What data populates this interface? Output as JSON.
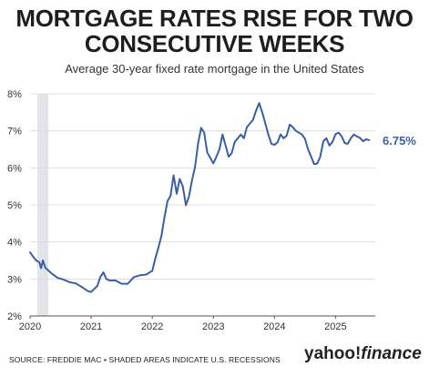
{
  "header": {
    "title": "MORTGAGE RATES RISE FOR TWO CONSECUTIVE WEEKS",
    "title_line1": "MORTGAGE RATES RISE FOR TWO",
    "title_line2": "CONSECUTIVE WEEKS",
    "subtitle": "Average 30-year fixed rate mortgage in the United States"
  },
  "footer": {
    "source": "SOURCE: FREDDIE MAC • SHADED AREAS INDICATE U.S. RECESSIONS",
    "logo_part1": "yahoo!",
    "logo_part2": "finance"
  },
  "chart_data": {
    "type": "line",
    "title": "MORTGAGE RATES RISE FOR TWO CONSECUTIVE WEEKS",
    "subtitle": "Average 30-year fixed rate mortgage in the United States",
    "xlabel": "",
    "ylabel": "",
    "xlim": [
      2020.0,
      2025.65
    ],
    "ylim": [
      2,
      8
    ],
    "x_ticks": [
      2020,
      2021,
      2022,
      2023,
      2024,
      2025
    ],
    "x_tick_labels": [
      "2020",
      "2021",
      "2022",
      "2023",
      "2024",
      "2025"
    ],
    "y_ticks": [
      2,
      3,
      4,
      5,
      6,
      7,
      8
    ],
    "y_tick_labels": [
      "2%",
      "3%",
      "4%",
      "5%",
      "6%",
      "7%",
      "8%"
    ],
    "grid": "horizontal",
    "line_color": "#3b5fa6",
    "recession_color": "#e1e4e8",
    "recessions": [
      {
        "start": 2020.12,
        "end": 2020.3
      }
    ],
    "end_label": "6.75%",
    "series": [
      {
        "x": [
          2020.0,
          2020.05,
          2020.1,
          2020.15,
          2020.18,
          2020.21,
          2020.25,
          2020.3,
          2020.35,
          2020.45,
          2020.55,
          2020.65,
          2020.75,
          2020.85,
          2020.95,
          2021.0,
          2021.05,
          2021.1,
          2021.15,
          2021.2,
          2021.25,
          2021.3,
          2021.4,
          2021.5,
          2021.6,
          2021.7,
          2021.8,
          2021.9,
          2022.0,
          2022.05,
          2022.1,
          2022.15,
          2022.2,
          2022.25,
          2022.3,
          2022.35,
          2022.4,
          2022.45,
          2022.5,
          2022.55,
          2022.6,
          2022.65,
          2022.7,
          2022.75,
          2022.8,
          2022.85,
          2022.9,
          2022.95,
          2023.0,
          2023.05,
          2023.1,
          2023.15,
          2023.2,
          2023.25,
          2023.3,
          2023.35,
          2023.4,
          2023.45,
          2023.5,
          2023.55,
          2023.6,
          2023.65,
          2023.7,
          2023.75,
          2023.8,
          2023.85,
          2023.9,
          2023.95,
          2024.0,
          2024.05,
          2024.1,
          2024.15,
          2024.2,
          2024.25,
          2024.3,
          2024.35,
          2024.4,
          2024.45,
          2024.5,
          2024.55,
          2024.6,
          2024.65,
          2024.7,
          2024.75,
          2024.8,
          2024.85,
          2024.9,
          2024.95,
          2025.0,
          2025.05,
          2025.1,
          2025.15,
          2025.2,
          2025.25,
          2025.3,
          2025.35,
          2025.4,
          2025.45,
          2025.5,
          2025.55
        ],
        "values": [
          3.72,
          3.6,
          3.5,
          3.45,
          3.29,
          3.5,
          3.3,
          3.23,
          3.15,
          3.03,
          2.98,
          2.91,
          2.88,
          2.78,
          2.67,
          2.65,
          2.73,
          2.81,
          3.05,
          3.18,
          3.0,
          2.96,
          2.96,
          2.87,
          2.87,
          3.05,
          3.1,
          3.12,
          3.22,
          3.55,
          3.85,
          4.16,
          4.67,
          5.1,
          5.25,
          5.8,
          5.3,
          5.7,
          5.5,
          4.99,
          5.22,
          5.66,
          6.02,
          6.66,
          7.08,
          6.95,
          6.42,
          6.27,
          6.12,
          6.3,
          6.5,
          6.9,
          6.6,
          6.3,
          6.4,
          6.7,
          6.8,
          6.9,
          6.8,
          7.1,
          7.2,
          7.3,
          7.55,
          7.75,
          7.5,
          7.2,
          6.9,
          6.65,
          6.62,
          6.69,
          6.9,
          6.8,
          6.87,
          7.17,
          7.1,
          7.0,
          6.95,
          6.9,
          6.78,
          6.5,
          6.3,
          6.1,
          6.12,
          6.3,
          6.72,
          6.8,
          6.6,
          6.7,
          6.91,
          6.95,
          6.85,
          6.67,
          6.65,
          6.8,
          6.9,
          6.85,
          6.81,
          6.72,
          6.77,
          6.75
        ]
      }
    ]
  }
}
